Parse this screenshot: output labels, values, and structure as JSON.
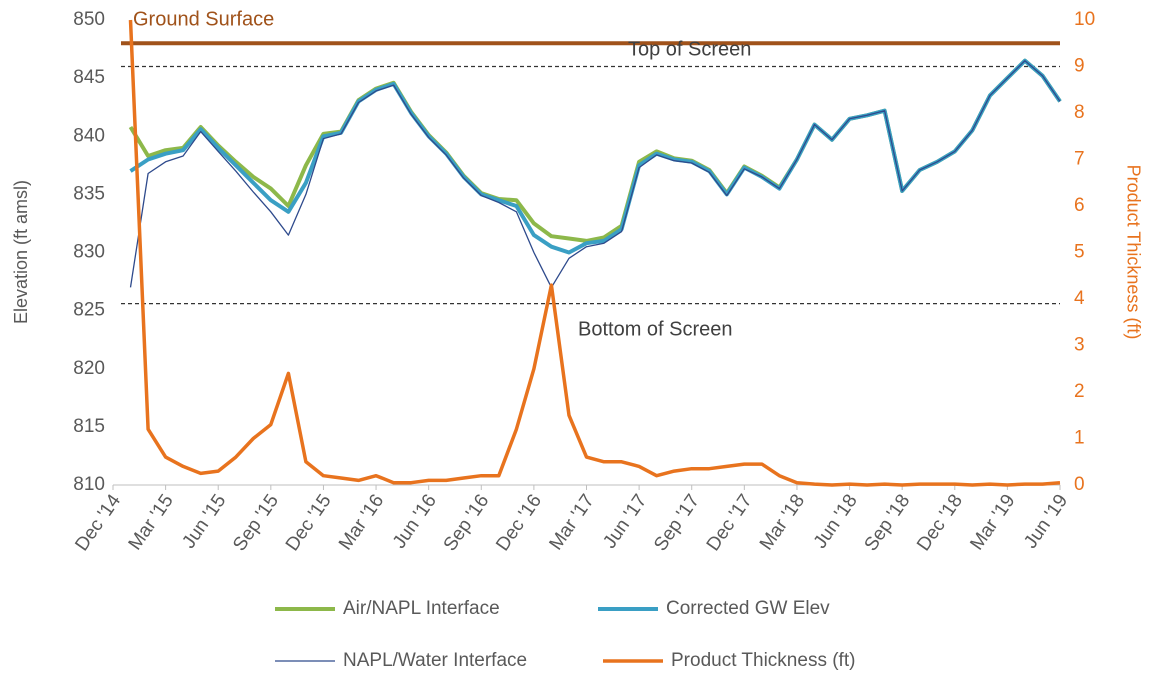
{
  "chart_data": {
    "type": "line",
    "y_label": "Elevation (ft amsl)",
    "y2_label": "Product Thickness (ft)",
    "x": [
      "2015-01",
      "2015-02",
      "2015-03",
      "2015-04",
      "2015-05",
      "2015-06",
      "2015-07",
      "2015-08",
      "2015-09",
      "2015-10",
      "2015-11",
      "2015-12",
      "2016-01",
      "2016-02",
      "2016-03",
      "2016-04",
      "2016-05",
      "2016-06",
      "2016-07",
      "2016-08",
      "2016-09",
      "2016-10",
      "2016-11",
      "2016-12",
      "2017-01",
      "2017-02",
      "2017-03",
      "2017-04",
      "2017-05",
      "2017-06",
      "2017-07",
      "2017-08",
      "2017-09",
      "2017-10",
      "2017-11",
      "2017-12",
      "2018-01",
      "2018-02",
      "2018-03",
      "2018-04",
      "2018-05",
      "2018-06",
      "2018-07",
      "2018-08",
      "2018-09",
      "2018-10",
      "2018-11",
      "2018-12",
      "2019-01",
      "2019-02",
      "2019-03",
      "2019-04",
      "2019-05",
      "2019-06"
    ],
    "series": [
      {
        "name": "Air/NAPL Interface",
        "color": "#8db84a",
        "width": 4,
        "values": [
          840.8,
          838.3,
          838.8,
          839,
          840.8,
          839.2,
          837.8,
          836.5,
          835.5,
          834,
          837.5,
          840.2,
          840.4,
          843.1,
          844.1,
          844.6,
          842.1,
          840.1,
          838.6,
          836.6,
          835.1,
          834.6,
          834.5,
          832.5,
          831.4,
          831.2,
          831,
          831.3,
          832.3,
          837.8,
          838.7,
          838.1,
          837.9,
          837.1,
          835.1,
          837.4,
          836.6,
          835.6,
          838,
          841,
          839.7,
          841.5,
          841.8,
          842.2,
          835.3,
          837.1,
          837.8,
          838.7,
          840.5,
          843.5,
          845,
          846.5,
          845.2,
          843
        ]
      },
      {
        "name": "Corrected GW Elev",
        "color": "#3a9fc4",
        "width": 4,
        "values": [
          837,
          838,
          838.5,
          838.8,
          840.6,
          839,
          837.5,
          836,
          834.5,
          833.5,
          836,
          840,
          840.3,
          843,
          844,
          844.5,
          842,
          840,
          838.5,
          836.5,
          835,
          834.5,
          834,
          831.5,
          830.5,
          830,
          830.8,
          831,
          832,
          837.5,
          838.5,
          838,
          837.8,
          837,
          835,
          837.3,
          836.5,
          835.5,
          838,
          841,
          839.7,
          841.5,
          841.8,
          842.2,
          835.3,
          837.1,
          837.8,
          838.7,
          840.5,
          843.5,
          845,
          846.5,
          845.2,
          843
        ]
      },
      {
        "name": "NAPL/Water Interface",
        "color": "#2e4a8c",
        "width": 1.3,
        "values": [
          827,
          836.8,
          837.8,
          838.3,
          840.4,
          838.7,
          837,
          835.2,
          833.5,
          831.5,
          835,
          839.8,
          840.2,
          842.9,
          843.9,
          844.4,
          841.9,
          839.9,
          838.4,
          836.4,
          834.9,
          834.3,
          833.5,
          830,
          827,
          829.5,
          830.5,
          830.8,
          831.8,
          837.3,
          838.4,
          837.9,
          837.7,
          836.9,
          834.9,
          837.2,
          836.5,
          835.5,
          838,
          841,
          839.7,
          841.5,
          841.8,
          842.2,
          835.3,
          837.1,
          837.8,
          838.7,
          840.5,
          843.5,
          845,
          846.5,
          845.2,
          843
        ]
      },
      {
        "name": "Product Thickness (ft)",
        "color": "#e8731e",
        "width": 3.5,
        "axis": "y2",
        "values": [
          10,
          1.2,
          0.6,
          0.4,
          0.25,
          0.3,
          0.6,
          1,
          1.3,
          2.4,
          0.5,
          0.2,
          0.15,
          0.1,
          0.2,
          0.05,
          0.05,
          0.1,
          0.1,
          0.15,
          0.2,
          0.2,
          1.2,
          2.5,
          4.3,
          1.5,
          0.6,
          0.5,
          0.5,
          0.4,
          0.2,
          0.3,
          0.35,
          0.35,
          0.4,
          0.45,
          0.45,
          0.2,
          0.05,
          0.02,
          0,
          0.02,
          0,
          0.02,
          0,
          0.02,
          0.02,
          0.02,
          0,
          0.02,
          0,
          0.02,
          0.02,
          0.05
        ]
      }
    ],
    "reference_lines": [
      {
        "label": "Ground Surface",
        "value": 848,
        "color": "#a0521a",
        "style": "solid"
      },
      {
        "label": "Top of Screen",
        "value": 846,
        "color": "#333333",
        "style": "dashed"
      },
      {
        "label": "Bottom of Screen",
        "value": 825.6,
        "color": "#333333",
        "style": "dashed"
      }
    ],
    "xlim": [
      "2014-12",
      "2019-06"
    ],
    "xticks": [
      {
        "value": "2014-12",
        "label": "Dec '14"
      },
      {
        "value": "2015-03",
        "label": "Mar '15"
      },
      {
        "value": "2015-06",
        "label": "Jun '15"
      },
      {
        "value": "2015-09",
        "label": "Sep '15"
      },
      {
        "value": "2015-12",
        "label": "Dec '15"
      },
      {
        "value": "2016-03",
        "label": "Mar '16"
      },
      {
        "value": "2016-06",
        "label": "Jun '16"
      },
      {
        "value": "2016-09",
        "label": "Sep '16"
      },
      {
        "value": "2016-12",
        "label": "Dec '16"
      },
      {
        "value": "2017-03",
        "label": "Mar '17"
      },
      {
        "value": "2017-06",
        "label": "Jun '17"
      },
      {
        "value": "2017-09",
        "label": "Sep '17"
      },
      {
        "value": "2017-12",
        "label": "Dec '17"
      },
      {
        "value": "2018-03",
        "label": "Mar '18"
      },
      {
        "value": "2018-06",
        "label": "Jun '18"
      },
      {
        "value": "2018-09",
        "label": "Sep '18"
      },
      {
        "value": "2018-12",
        "label": "Dec '18"
      },
      {
        "value": "2019-03",
        "label": "Mar '19"
      },
      {
        "value": "2019-06",
        "label": "Jun '19"
      }
    ],
    "ylim": [
      810,
      850
    ],
    "yticks": [
      810,
      815,
      820,
      825,
      830,
      835,
      840,
      845,
      850
    ],
    "y2lim": [
      0,
      10
    ],
    "y2ticks": [
      0,
      1,
      2,
      3,
      4,
      5,
      6,
      7,
      8,
      9,
      10
    ],
    "y2_color": "#e8731e",
    "grid": false,
    "legend": "bottom"
  }
}
